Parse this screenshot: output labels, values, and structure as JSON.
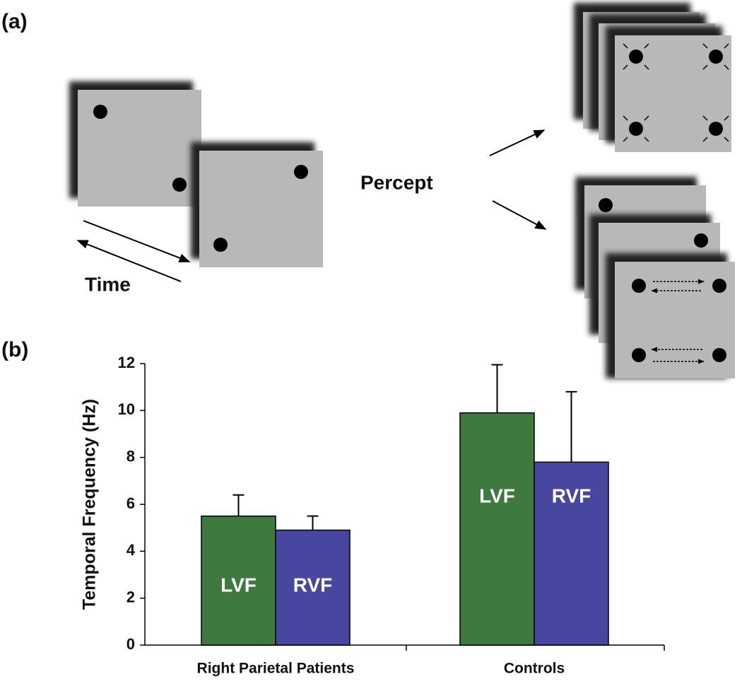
{
  "panels": [
    "(a)",
    "(b)"
  ],
  "diagram": {
    "percept_label": "Percept",
    "time_label": "Time"
  },
  "chart_data": {
    "type": "bar",
    "y_label": "Temporal Frequency (Hz)",
    "categories": [
      "Right Parietal Patients",
      "Controls"
    ],
    "series": [
      {
        "name": "LVF",
        "color": "#3e7a3e",
        "values": [
          5.5,
          9.9
        ],
        "errors": [
          0.9,
          2.05
        ]
      },
      {
        "name": "RVF",
        "color": "#4747a0",
        "values": [
          4.9,
          7.8
        ],
        "errors": [
          0.6,
          3.0
        ]
      }
    ],
    "ylim": [
      0,
      12
    ],
    "yticks": [
      0,
      2,
      4,
      6,
      8,
      10,
      12
    ],
    "grid": false
  }
}
